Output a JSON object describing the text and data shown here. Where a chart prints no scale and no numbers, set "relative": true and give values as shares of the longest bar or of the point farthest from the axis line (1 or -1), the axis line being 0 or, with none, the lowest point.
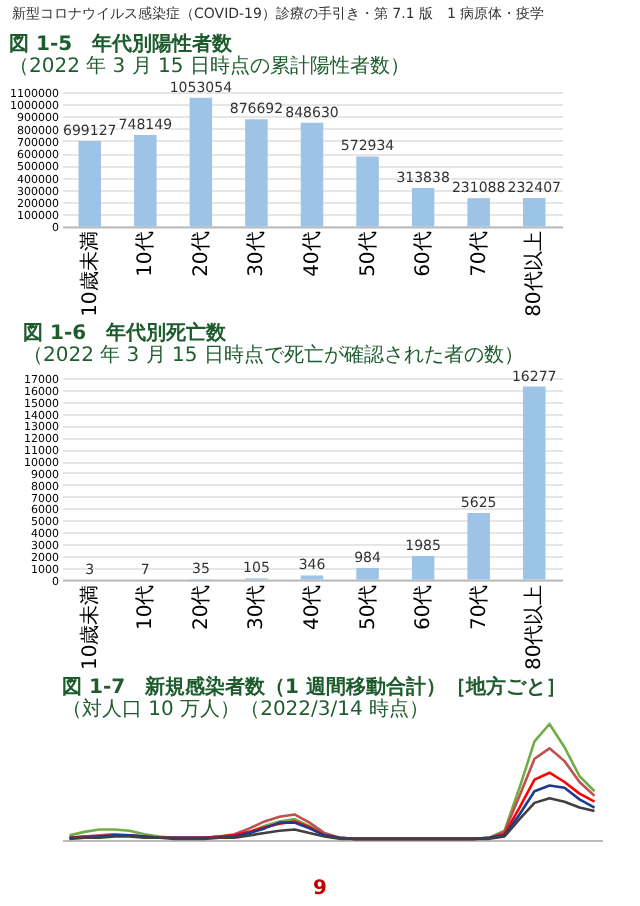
{
  "chart_data": [
    {
      "type": "bar",
      "title": "図 1-5　年代別陽性者数",
      "subtitle": "（2022 年 3 月 15 日時点の累計陽性者数）",
      "annotations": [
        "新型コロナウイルス感染症（COVID-19）診療の手引き・第 7.1 版　1 病原体・疫学"
      ],
      "categories": [
        "10歳未満",
        "10代",
        "20代",
        "30代",
        "40代",
        "50代",
        "60代",
        "70代",
        "80代以上"
      ],
      "values": [
        699127,
        748149,
        1053054,
        876692,
        848630,
        572934,
        313838,
        231088,
        232407
      ],
      "color": "#9dc3e6",
      "ylim": [
        0,
        1100000
      ],
      "yticks": [
        0,
        100000,
        200000,
        300000,
        400000,
        500000,
        600000,
        700000,
        800000,
        900000,
        1000000,
        1100000
      ],
      "grid": "y",
      "data_labels": true
    },
    {
      "type": "bar",
      "title": "図 1-6　年代別死亡数",
      "subtitle": "（2022 年 3 月 15 日時点で死亡が確認された者の数）",
      "categories": [
        "10歳未満",
        "10代",
        "20代",
        "30代",
        "40代",
        "50代",
        "60代",
        "70代",
        "80代以上"
      ],
      "values": [
        3,
        7,
        35,
        105,
        346,
        984,
        1985,
        5625,
        16277
      ],
      "color": "#9dc3e6",
      "ylim": [
        0,
        17000
      ],
      "yticks": [
        0,
        1000,
        2000,
        3000,
        4000,
        5000,
        6000,
        7000,
        8000,
        9000,
        10000,
        11000,
        12000,
        13000,
        14000,
        15000,
        16000,
        17000
      ],
      "grid": "y",
      "data_labels": true
    },
    {
      "type": "line",
      "title": "図 1-7　新規感染者数（1 週間移動合計）［地方ごと］",
      "subtitle": "（対人口 10 万人）（2022/3/14 時点）",
      "annotations": [
        "9"
      ],
      "relative": true,
      "categories": [
        null,
        null,
        null,
        null,
        null,
        null,
        null,
        null,
        null,
        null,
        null,
        null,
        null,
        null,
        null,
        null,
        null,
        null,
        null,
        null,
        null,
        null,
        null,
        null,
        null,
        null,
        null,
        null,
        null,
        null,
        null,
        null,
        null,
        null,
        null,
        null
      ],
      "series": [
        {
          "color": "#70ad47",
          "values": [
            0.04,
            0.07,
            0.09,
            0.09,
            0.08,
            0.05,
            0.03,
            0.02,
            0.02,
            0.02,
            0.03,
            0.04,
            0.07,
            0.12,
            0.16,
            0.18,
            0.12,
            0.05,
            0.02,
            0.01,
            0.01,
            0.01,
            0.01,
            0.01,
            0.01,
            0.01,
            0.01,
            0.01,
            0.02,
            0.08,
            0.45,
            0.85,
            1.0,
            0.8,
            0.55,
            0.42
          ]
        },
        {
          "color": "#c0504d",
          "values": [
            0.02,
            0.03,
            0.04,
            0.05,
            0.04,
            0.03,
            0.02,
            0.02,
            0.02,
            0.02,
            0.03,
            0.05,
            0.1,
            0.16,
            0.2,
            0.22,
            0.15,
            0.06,
            0.02,
            0.01,
            0.01,
            0.01,
            0.01,
            0.01,
            0.01,
            0.01,
            0.01,
            0.01,
            0.02,
            0.07,
            0.38,
            0.7,
            0.79,
            0.68,
            0.5,
            0.38
          ]
        },
        {
          "color": "#ff0000",
          "values": [
            0.02,
            0.03,
            0.03,
            0.04,
            0.04,
            0.03,
            0.02,
            0.02,
            0.02,
            0.02,
            0.03,
            0.04,
            0.07,
            0.11,
            0.14,
            0.16,
            0.11,
            0.04,
            0.02,
            0.01,
            0.01,
            0.01,
            0.01,
            0.01,
            0.01,
            0.01,
            0.01,
            0.01,
            0.02,
            0.05,
            0.28,
            0.52,
            0.58,
            0.5,
            0.4,
            0.33
          ]
        },
        {
          "color": "#1f3a93",
          "values": [
            0.02,
            0.02,
            0.03,
            0.04,
            0.04,
            0.03,
            0.02,
            0.02,
            0.02,
            0.02,
            0.02,
            0.03,
            0.06,
            0.1,
            0.15,
            0.15,
            0.1,
            0.04,
            0.02,
            0.01,
            0.01,
            0.01,
            0.01,
            0.01,
            0.01,
            0.01,
            0.01,
            0.01,
            0.02,
            0.04,
            0.22,
            0.42,
            0.47,
            0.45,
            0.35,
            0.28
          ]
        },
        {
          "color": "#404040",
          "values": [
            0.01,
            0.02,
            0.02,
            0.03,
            0.03,
            0.02,
            0.02,
            0.01,
            0.01,
            0.01,
            0.02,
            0.02,
            0.04,
            0.06,
            0.08,
            0.09,
            0.06,
            0.03,
            0.01,
            0.01,
            0.01,
            0.01,
            0.01,
            0.01,
            0.01,
            0.01,
            0.01,
            0.01,
            0.01,
            0.03,
            0.18,
            0.32,
            0.36,
            0.33,
            0.28,
            0.25
          ]
        }
      ]
    }
  ]
}
